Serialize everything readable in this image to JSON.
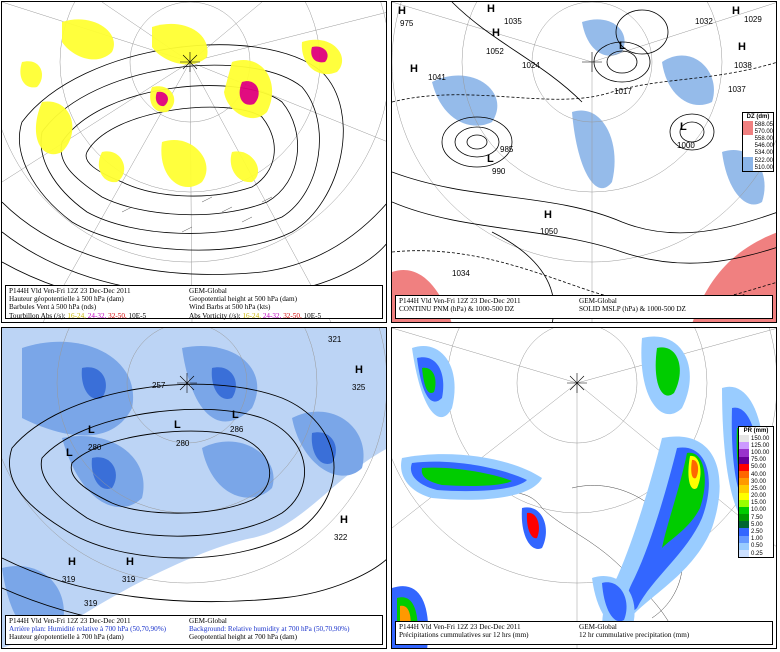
{
  "panels": {
    "p1": {
      "caption_left": [
        "P144H Vld Ven-Fri 12Z 23 Dec-Dec 2011",
        "Hauteur géopotentielle à 500 hPa (dam)",
        "Barbules Vent à 500 hPa (nds)",
        "Tourbillon Abs (/s):"
      ],
      "caption_right": [
        "GEM-Global",
        "Geopotential height at 500 hPa (dam)",
        "Wind Barbs at 500 hPa (kts)",
        "Abs Vorticity (/s):"
      ],
      "vort_ranges": [
        "16-24,",
        "24-32,",
        "32-50,",
        "10E-5"
      ],
      "colors": {
        "yellow": "#ffff00",
        "magenta": "#e0007a",
        "red": "#e02040"
      }
    },
    "p2": {
      "caption_left": [
        "P144H Vld Ven-Fri 12Z 23 Dec-Dec 2011",
        "CONTINU PNM (hPa) & 1000-500 DZ"
      ],
      "caption_right": [
        "GEM-Global",
        "SOLID MSLP (hPa) & 1000-500 DZ"
      ],
      "labels": [
        "1035",
        "1032",
        "1029",
        "1038",
        "1037",
        "1041",
        "1052",
        "1017",
        "1034",
        "1050",
        "990",
        "985",
        "1000",
        "1024"
      ],
      "colorbar": {
        "title": "DZ (dm)",
        "values": [
          "588.05",
          "570.00",
          "558.00",
          "546.00",
          "534.00",
          "522.00",
          "510.00"
        ]
      }
    },
    "p3": {
      "caption_left": [
        "P144H Vld Ven-Fri 12Z 23 Dec-Dec 2011",
        "Arrière plan: Humidité relative à 700 hPa (50,70,90%)",
        "Hauteur géopotentielle à 700 hPa (dam)"
      ],
      "caption_right": [
        "GEM-Global",
        "Background: Relative humidity at 700 hPa (50,70,90%)",
        "Geopotential height at 700 hPa (dam)"
      ],
      "labels": [
        "321",
        "325",
        "322",
        "319",
        "319",
        "319",
        "280",
        "280",
        "286",
        "257"
      ]
    },
    "p4": {
      "caption_left": [
        "P144H Vld Ven-Fri 12Z 23 Dec-Dec 2011",
        "Précipitations cummulatives sur 12 hrs (mm)"
      ],
      "caption_right": [
        "GEM-Global",
        "12 hr cummulative precipitation     (mm)"
      ],
      "colorbar": {
        "title": "PR (mm)",
        "values": [
          "150.00",
          "125.00",
          "100.00",
          "75.00",
          "50.00",
          "40.00",
          "30.00",
          "25.00",
          "20.00",
          "15.00",
          "10.00",
          "7.50",
          "5.00",
          "2.50",
          "1.00",
          "0.50",
          "0.25"
        ],
        "colors": [
          "#e6e6e6",
          "#cc99ff",
          "#9933cc",
          "#660099",
          "#ff0000",
          "#ff6600",
          "#ff9900",
          "#ffcc00",
          "#ffff00",
          "#99ff00",
          "#00cc00",
          "#009900",
          "#006633",
          "#3366ff",
          "#6699ff",
          "#99ccff",
          "#cce0ff"
        ]
      }
    }
  }
}
